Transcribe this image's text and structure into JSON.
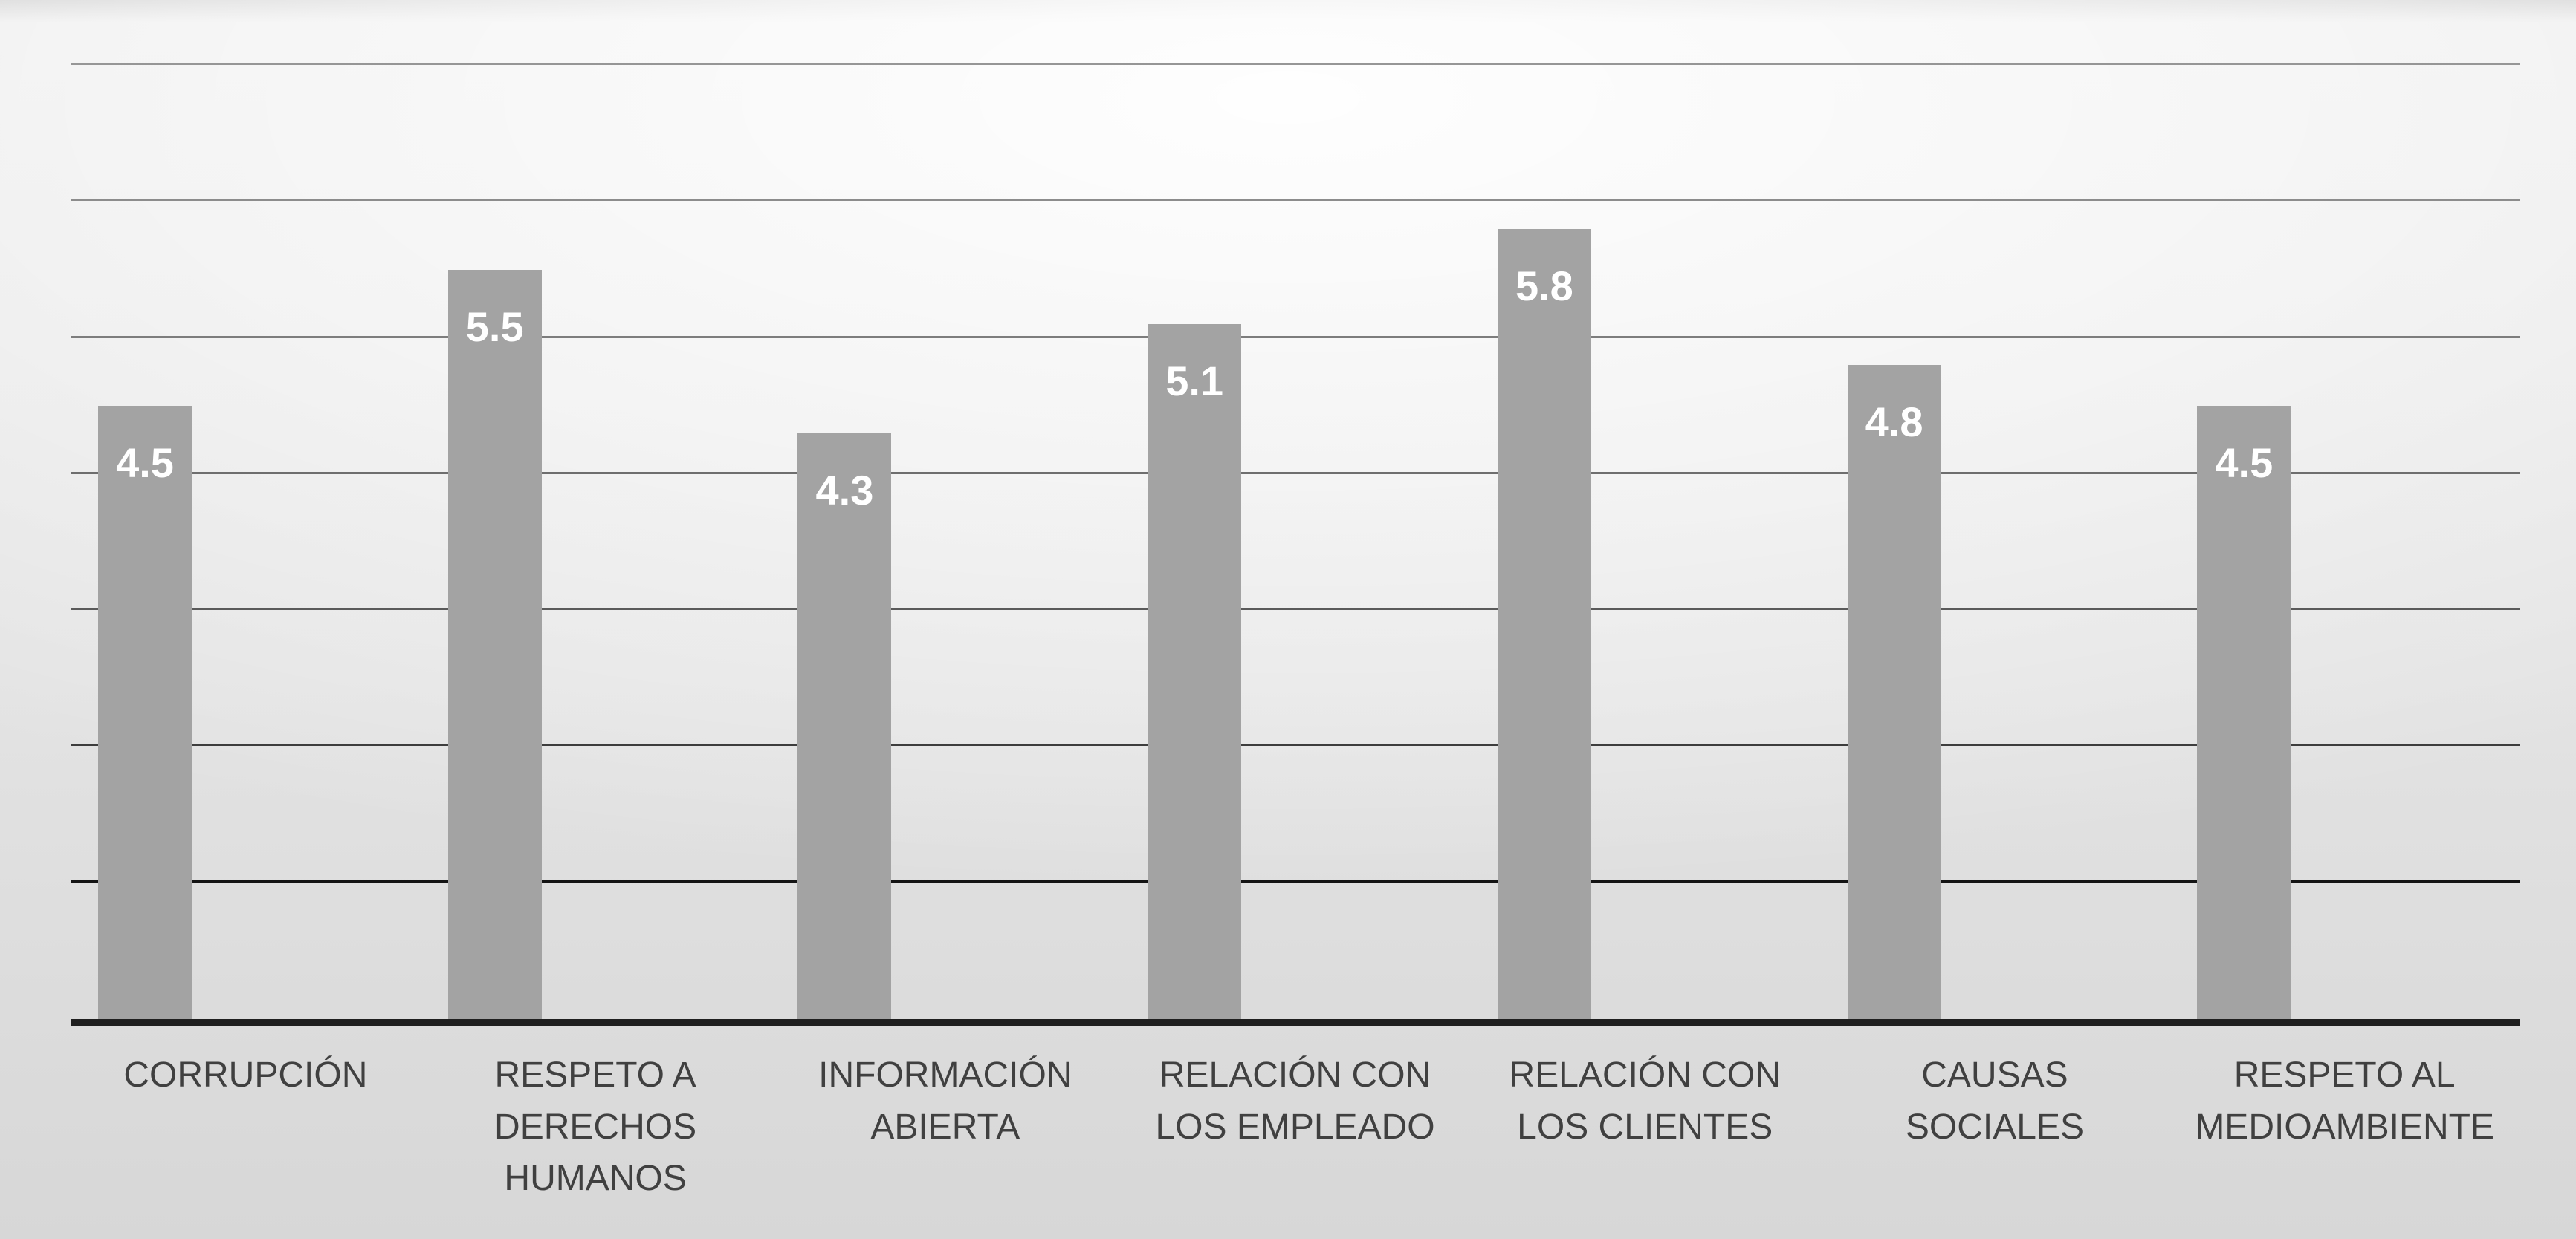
{
  "chart_data": {
    "type": "bar",
    "title": "",
    "xlabel": "",
    "ylabel": "",
    "categories": [
      "CORRUPCIÓN",
      "RESPETO A DERECHOS HUMANOS",
      "INFORMACIÓN ABIERTA",
      "RELACIÓN CON LOS EMPLEADO",
      "RELACIÓN CON LOS CLIENTES",
      "CAUSAS SOCIALES",
      "RESPETO AL MEDIOAMBIENTE"
    ],
    "values": [
      4.5,
      5.5,
      4.3,
      5.1,
      5.8,
      4.8,
      4.5
    ],
    "data_labels": [
      "4.5",
      "5.5",
      "4.3",
      "5.1",
      "5.8",
      "4.8",
      "4.5"
    ],
    "ylim": [
      0,
      7
    ],
    "grid_interval": 1,
    "grid": true,
    "legend": false,
    "y_tick_labels_visible": false,
    "bar_color": "#a3a3a3",
    "data_label_color": "#ffffff",
    "category_label_color": "#404040",
    "gridline_color": "#8c8c8c",
    "axis_color": "#1f1f1f"
  }
}
